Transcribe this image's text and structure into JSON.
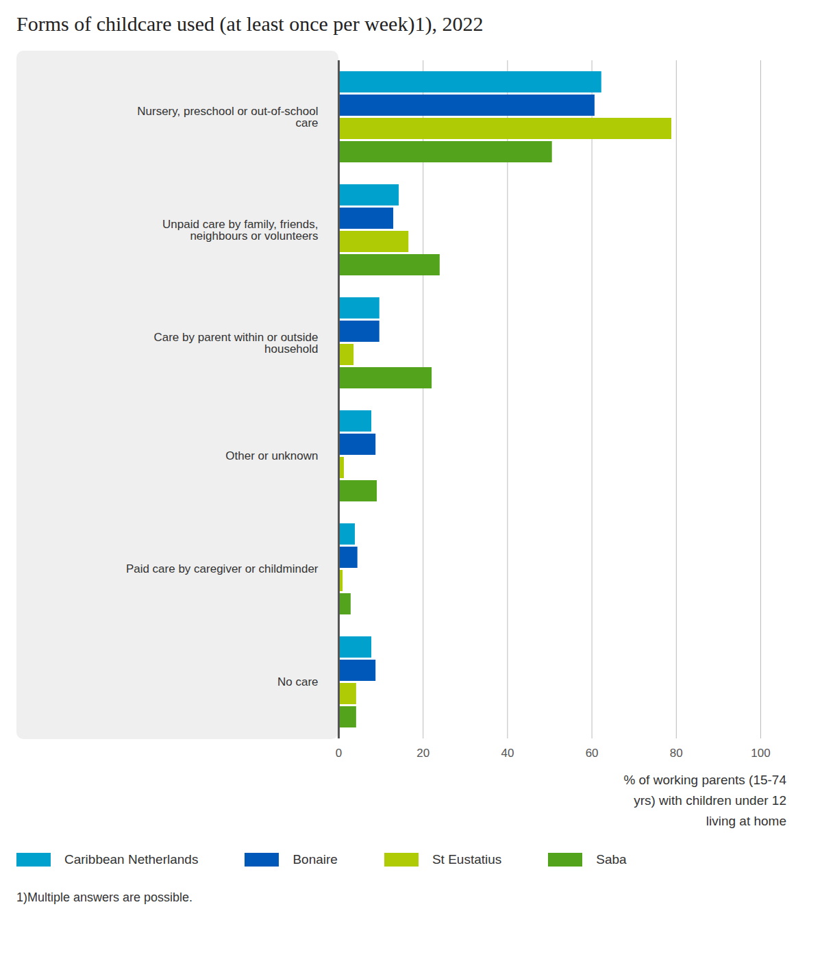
{
  "chart_data": {
    "type": "bar",
    "orientation": "horizontal",
    "title": "Forms of childcare used (at least once per week)1), 2022",
    "xlabel": "% of working parents (15-74 yrs) with children under 12 living at home",
    "note": "1)Multiple answers are possible.",
    "categories": [
      "Nursery, preschool or out-of-school care",
      "Unpaid care by family, friends, neighbours or volunteers",
      "Care by parent within or outside household",
      "Other or unknown",
      "Paid care by caregiver or childminder",
      "No care"
    ],
    "series": [
      {
        "name": "Caribbean Netherlands",
        "color": "#00a1cd",
        "values": [
          62.3,
          14.3,
          9.7,
          7.8,
          3.9,
          7.8
        ]
      },
      {
        "name": "Bonaire",
        "color": "#0058b8",
        "values": [
          60.7,
          13.0,
          9.7,
          8.8,
          4.5,
          8.8
        ]
      },
      {
        "name": "St Eustatius",
        "color": "#afcb05",
        "values": [
          78.9,
          16.6,
          3.6,
          1.3,
          1.0,
          4.2
        ]
      },
      {
        "name": "Saba",
        "color": "#53a31d",
        "values": [
          50.6,
          24.0,
          22.1,
          9.1,
          2.9,
          4.2
        ]
      }
    ],
    "xlim": [
      0,
      100
    ],
    "xticks": [
      0,
      20,
      40,
      60,
      80,
      100
    ],
    "grid": true,
    "legend": "bottom"
  }
}
